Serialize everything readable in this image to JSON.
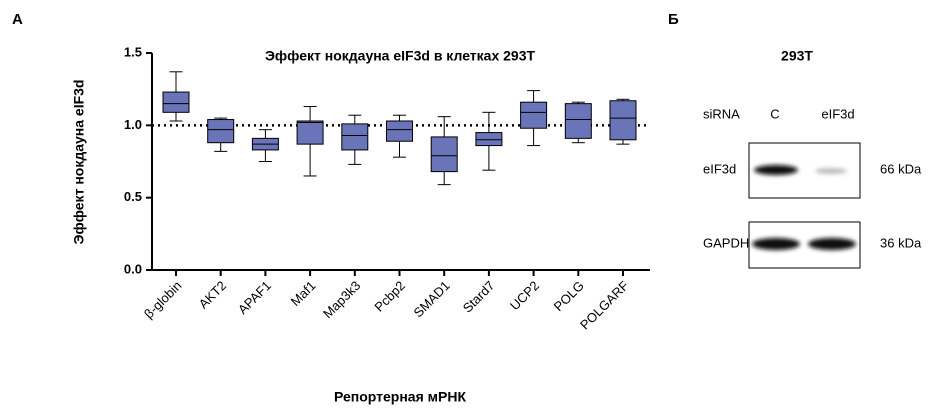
{
  "panel_label": "A",
  "chart_data": {
    "type": "box",
    "title": "Эффект нокдауна eIF3d в клетках 293T",
    "x_label": "Репортерная мРНК",
    "y_label": "Эффект нокдауна eIF3d",
    "categories": [
      "β-globin",
      "AKT2",
      "APAF1",
      "Maf1",
      "Map3k3",
      "Pcbp2",
      "SMAD1",
      "Stard7",
      "UCP2",
      "POLG",
      "POLGARF"
    ],
    "values": [
      [
        1.03,
        1.09,
        1.15,
        1.23,
        1.37
      ],
      [
        0.82,
        0.88,
        0.97,
        1.04,
        1.05
      ],
      [
        0.75,
        0.83,
        0.87,
        0.91,
        0.97
      ],
      [
        0.65,
        0.87,
        1.02,
        1.03,
        1.13
      ],
      [
        0.73,
        0.83,
        0.93,
        1.01,
        1.07
      ],
      [
        0.78,
        0.89,
        0.97,
        1.03,
        1.07
      ],
      [
        0.59,
        0.68,
        0.79,
        0.92,
        1.06
      ],
      [
        0.69,
        0.86,
        0.9,
        0.95,
        1.09
      ],
      [
        0.86,
        0.98,
        1.09,
        1.16,
        1.24
      ],
      [
        0.88,
        0.91,
        1.04,
        1.15,
        1.16
      ],
      [
        0.87,
        0.9,
        1.05,
        1.17,
        1.18
      ]
    ],
    "color": "#6a74b8",
    "reference_line": 1,
    "ylim": [
      0,
      1.5
    ],
    "yticks": [
      {
        "value": 0,
        "label": "0.0"
      },
      0.5,
      {
        "value": 1,
        "label": "1.0"
      },
      1.5
    ]
  },
  "blot": {
    "label": "Б",
    "cell_line": "293T",
    "row_header": "siRNA",
    "lanes": [
      "C",
      "eIF3d"
    ],
    "rows": [
      {
        "name": "eIF3d",
        "size": "66 kDa"
      },
      {
        "name": "GAPDH",
        "size": "36 kDa"
      }
    ]
  }
}
